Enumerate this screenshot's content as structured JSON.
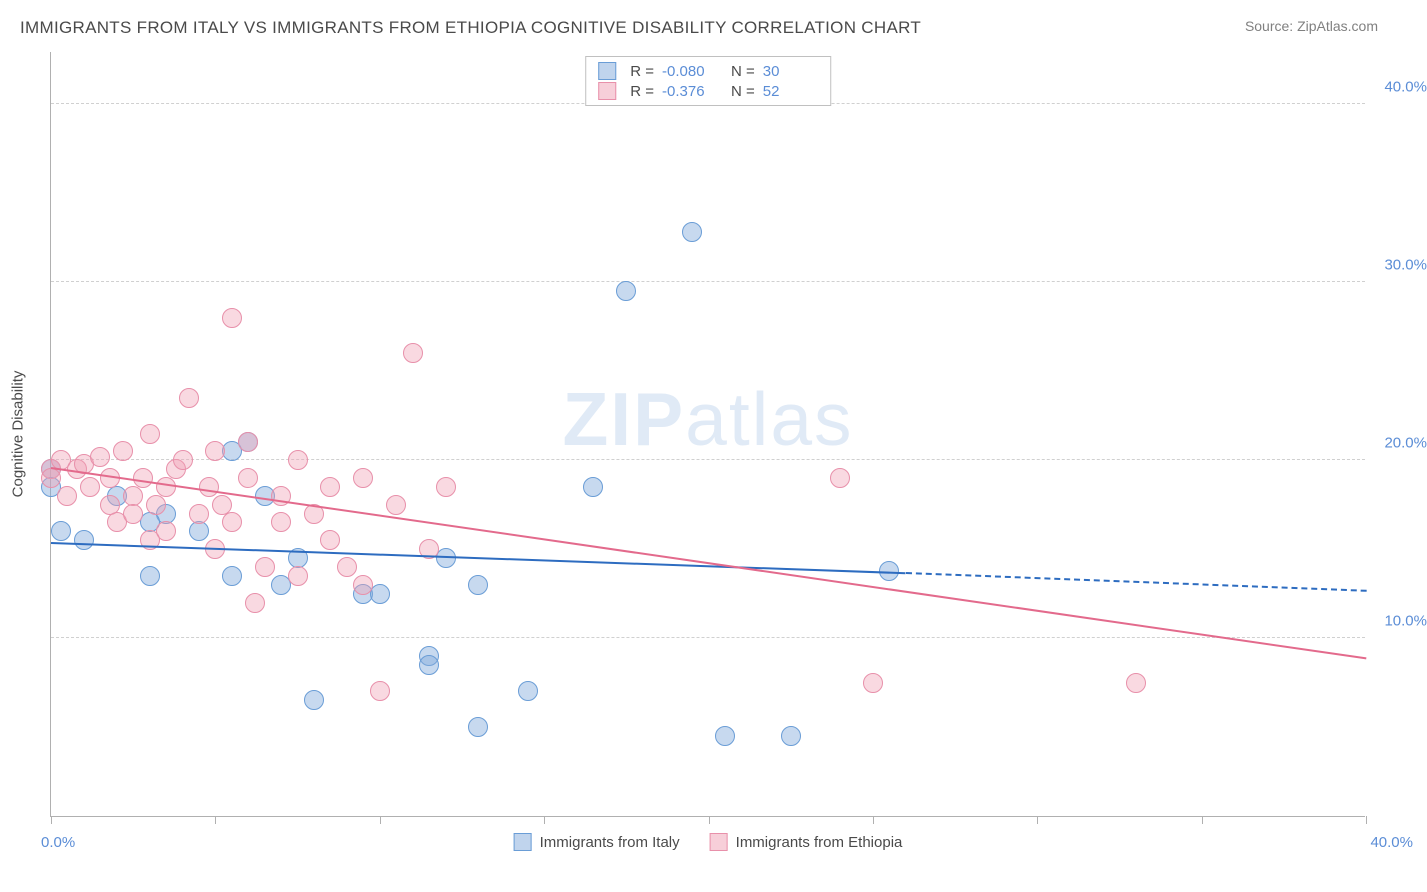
{
  "title": "IMMIGRANTS FROM ITALY VS IMMIGRANTS FROM ETHIOPIA COGNITIVE DISABILITY CORRELATION CHART",
  "source": "Source: ZipAtlas.com",
  "watermark_prefix": "ZIP",
  "watermark_suffix": "atlas",
  "yaxis_title": "Cognitive Disability",
  "chart": {
    "type": "scatter",
    "xlim": [
      0,
      40
    ],
    "ylim": [
      0,
      43
    ],
    "x_axis_labels": {
      "min": "0.0%",
      "max": "40.0%"
    },
    "y_gridlines": [
      10,
      20,
      30,
      40
    ],
    "y_tick_labels": [
      "10.0%",
      "20.0%",
      "30.0%",
      "40.0%"
    ],
    "label_color": "#5b8dd6",
    "grid_color": "#d0d0d0",
    "axis_color": "#b0b0b0",
    "background_color": "#ffffff",
    "x_ticks": [
      0,
      5,
      10,
      15,
      20,
      25,
      30,
      35,
      40
    ],
    "label_fontsize": 15,
    "title_fontsize": 17,
    "marker_radius": 10,
    "series": [
      {
        "name": "Immigrants from Italy",
        "color_fill": "rgba(130,170,220,0.45)",
        "color_stroke": "#6a9dd6",
        "R": "-0.080",
        "N": "30",
        "trend": {
          "x1": 0,
          "y1": 15.3,
          "x2": 26,
          "y2": 13.6,
          "x_dash_to": 40,
          "y_dash_to": 12.6,
          "color": "#2d6cc0"
        },
        "points": [
          [
            0.0,
            19.5
          ],
          [
            0.0,
            18.5
          ],
          [
            0.3,
            16.0
          ],
          [
            1.0,
            15.5
          ],
          [
            2.0,
            18.0
          ],
          [
            3.0,
            13.5
          ],
          [
            3.5,
            17.0
          ],
          [
            4.5,
            16.0
          ],
          [
            5.5,
            13.5
          ],
          [
            5.5,
            20.5
          ],
          [
            6.0,
            21.0
          ],
          [
            6.5,
            18.0
          ],
          [
            7.0,
            13.0
          ],
          [
            7.5,
            14.5
          ],
          [
            8.0,
            6.5
          ],
          [
            9.5,
            12.5
          ],
          [
            10.0,
            12.5
          ],
          [
            11.5,
            9.0
          ],
          [
            11.5,
            8.5
          ],
          [
            12.0,
            14.5
          ],
          [
            13.0,
            5.0
          ],
          [
            13.0,
            13.0
          ],
          [
            14.5,
            7.0
          ],
          [
            16.5,
            18.5
          ],
          [
            17.5,
            29.5
          ],
          [
            19.5,
            32.8
          ],
          [
            20.5,
            4.5
          ],
          [
            22.5,
            4.5
          ],
          [
            25.5,
            13.8
          ],
          [
            3.0,
            16.5
          ]
        ]
      },
      {
        "name": "Immigrants from Ethiopia",
        "color_fill": "rgba(240,160,180,0.4)",
        "color_stroke": "#e890aa",
        "R": "-0.376",
        "N": "52",
        "trend": {
          "x1": 0,
          "y1": 19.5,
          "x2": 40,
          "y2": 8.8,
          "color": "#e36a8c"
        },
        "points": [
          [
            0.0,
            19.5
          ],
          [
            0.0,
            19.0
          ],
          [
            0.3,
            20.0
          ],
          [
            0.5,
            18.0
          ],
          [
            0.8,
            19.5
          ],
          [
            1.0,
            19.8
          ],
          [
            1.2,
            18.5
          ],
          [
            1.5,
            20.2
          ],
          [
            1.8,
            17.5
          ],
          [
            1.8,
            19.0
          ],
          [
            2.0,
            16.5
          ],
          [
            2.2,
            20.5
          ],
          [
            2.5,
            18.0
          ],
          [
            2.5,
            17.0
          ],
          [
            2.8,
            19.0
          ],
          [
            3.0,
            21.5
          ],
          [
            3.0,
            15.5
          ],
          [
            3.2,
            17.5
          ],
          [
            3.5,
            18.5
          ],
          [
            3.5,
            16.0
          ],
          [
            3.8,
            19.5
          ],
          [
            4.0,
            20.0
          ],
          [
            4.2,
            23.5
          ],
          [
            4.5,
            17.0
          ],
          [
            4.8,
            18.5
          ],
          [
            5.0,
            20.5
          ],
          [
            5.0,
            15.0
          ],
          [
            5.2,
            17.5
          ],
          [
            5.5,
            16.5
          ],
          [
            5.5,
            28.0
          ],
          [
            6.0,
            19.0
          ],
          [
            6.0,
            21.0
          ],
          [
            6.2,
            12.0
          ],
          [
            6.5,
            14.0
          ],
          [
            7.0,
            18.0
          ],
          [
            7.0,
            16.5
          ],
          [
            7.5,
            20.0
          ],
          [
            7.5,
            13.5
          ],
          [
            8.0,
            17.0
          ],
          [
            8.5,
            15.5
          ],
          [
            8.5,
            18.5
          ],
          [
            9.0,
            14.0
          ],
          [
            9.5,
            13.0
          ],
          [
            9.5,
            19.0
          ],
          [
            10.0,
            7.0
          ],
          [
            10.5,
            17.5
          ],
          [
            11.0,
            26.0
          ],
          [
            11.5,
            15.0
          ],
          [
            12.0,
            18.5
          ],
          [
            24.0,
            19.0
          ],
          [
            25.0,
            7.5
          ],
          [
            33.0,
            7.5
          ]
        ]
      }
    ]
  },
  "legend_bottom": [
    {
      "swatch": "blue",
      "label": "Immigrants from Italy"
    },
    {
      "swatch": "pink",
      "label": "Immigrants from Ethiopia"
    }
  ]
}
